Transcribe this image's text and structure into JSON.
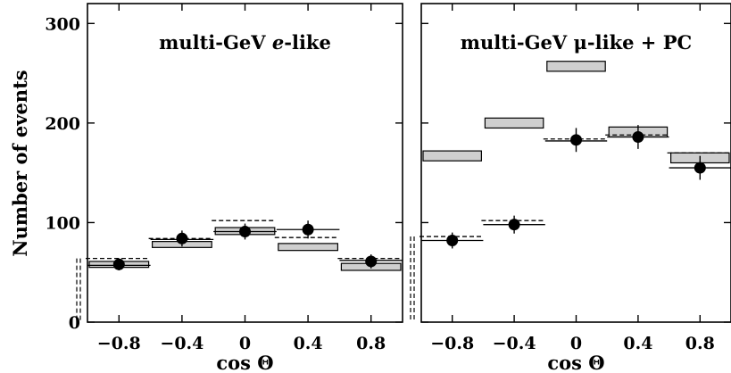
{
  "ylabel": "Number of events",
  "chart_data": [
    {
      "type": "step",
      "title": "multi-GeV e-like",
      "title_parts": [
        "multi-GeV ",
        "e",
        "-like"
      ],
      "xlabel": "cos Θ",
      "ylabel": "Number of events",
      "xlim": [
        -1.0,
        1.0
      ],
      "ylim": [
        0,
        320
      ],
      "xticks": [
        -0.8,
        -0.4,
        0,
        0.4,
        0.8
      ],
      "xtick_labels": [
        "−0.8",
        "−0.4",
        "0",
        "0.4",
        "0.8"
      ],
      "yticks": [
        0,
        100,
        200,
        300
      ],
      "ytick_labels": [
        "0",
        "100",
        "200",
        "300"
      ],
      "bin_edges": [
        -1.0,
        -0.6,
        -0.2,
        0.2,
        0.6,
        1.0
      ],
      "bin_centers": [
        -0.8,
        -0.4,
        0,
        0.4,
        0.8
      ],
      "series": [
        {
          "kind": "prediction-band",
          "low": [
            55,
            75,
            88,
            72,
            52
          ],
          "high": [
            61,
            81,
            95,
            79,
            59
          ]
        },
        {
          "kind": "dashed-line",
          "values": [
            64,
            84,
            102,
            85,
            64
          ]
        },
        {
          "kind": "solid-line",
          "values": [
            57,
            83,
            91,
            93,
            62
          ]
        },
        {
          "kind": "data",
          "values": [
            58,
            84,
            91,
            93,
            61
          ],
          "errors": [
            6,
            8,
            8,
            9,
            7
          ]
        }
      ]
    },
    {
      "type": "step",
      "title": "multi-GeV μ-like + PC",
      "title_parts": [
        "multi-GeV ",
        "μ",
        "-like + PC"
      ],
      "xlabel": "cos Θ",
      "xlim": [
        -1.0,
        1.0
      ],
      "ylim": [
        0,
        320
      ],
      "xticks": [
        -0.8,
        -0.4,
        0,
        0.4,
        0.8
      ],
      "xtick_labels": [
        "−0.8",
        "−0.4",
        "0",
        "0.4",
        "0.8"
      ],
      "yticks": [
        0,
        100,
        200,
        300
      ],
      "bin_edges": [
        -1.0,
        -0.6,
        -0.2,
        0.2,
        0.6,
        1.0
      ],
      "bin_centers": [
        -0.8,
        -0.4,
        0,
        0.4,
        0.8
      ],
      "series": [
        {
          "kind": "prediction-band",
          "low": [
            162,
            195,
            252,
            186,
            160
          ],
          "high": [
            172,
            205,
            262,
            196,
            170
          ]
        },
        {
          "kind": "dashed-line",
          "values": [
            86,
            102,
            184,
            188,
            170
          ]
        },
        {
          "kind": "solid-line",
          "values": [
            82,
            98,
            182,
            186,
            155
          ]
        },
        {
          "kind": "data",
          "values": [
            82,
            98,
            183,
            186,
            155
          ],
          "errors": [
            8,
            9,
            12,
            12,
            12
          ]
        }
      ]
    }
  ]
}
